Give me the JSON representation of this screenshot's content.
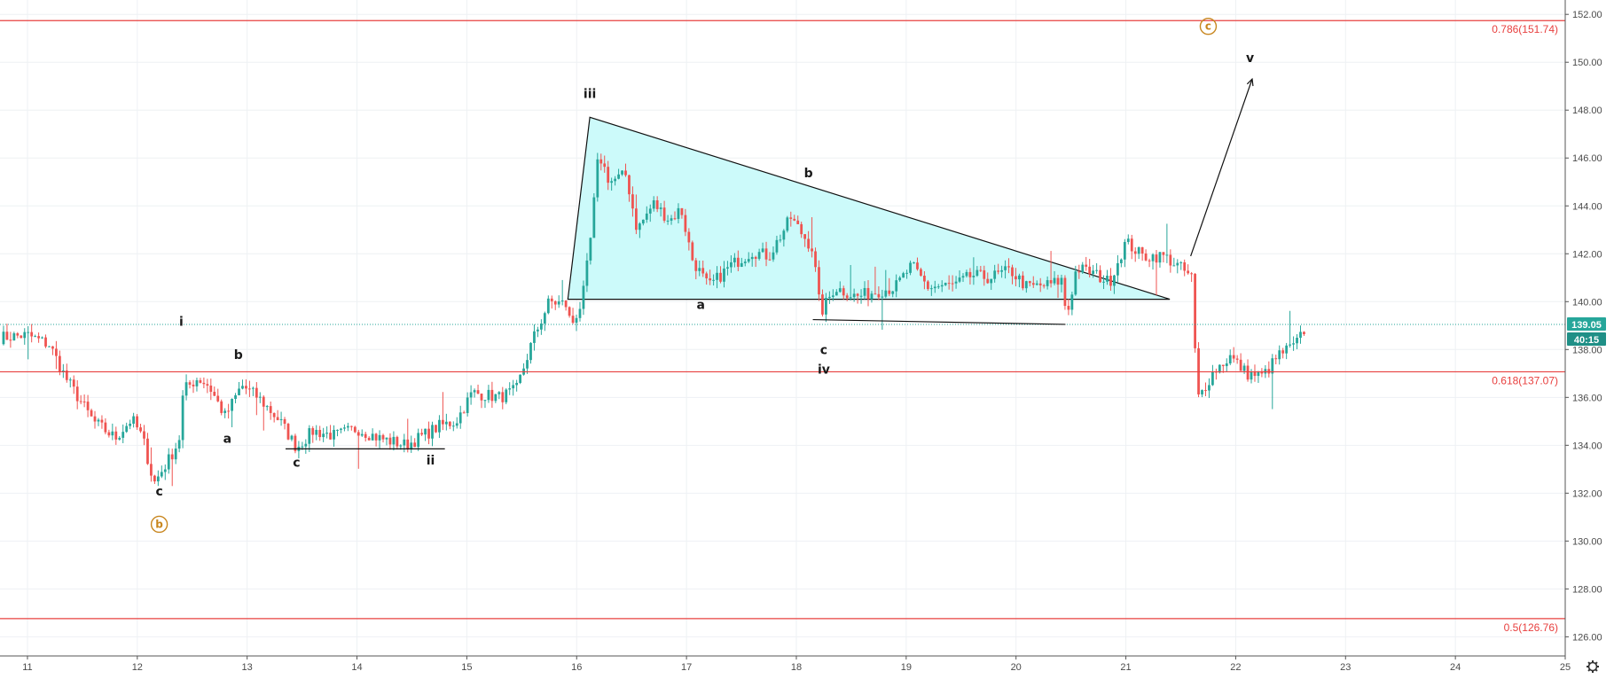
{
  "chart_data": {
    "type": "candlestick",
    "xlabel": "",
    "ylabel": "",
    "x_axis": {
      "range": [
        10.75,
        25.0
      ],
      "tick_labels": [
        "11",
        "12",
        "13",
        "14",
        "15",
        "16",
        "17",
        "18",
        "19",
        "20",
        "21",
        "22",
        "23",
        "24",
        "25"
      ]
    },
    "y_axis": {
      "range": [
        125.2,
        152.6
      ],
      "position": "right",
      "tick_labels": [
        "126.00",
        "128.00",
        "130.00",
        "132.00",
        "134.00",
        "136.00",
        "138.00",
        "140.00",
        "142.00",
        "144.00",
        "146.00",
        "148.00",
        "150.00",
        "152.00"
      ]
    },
    "grid": true,
    "colors": {
      "up": "#26a69a",
      "down": "#ef5350",
      "fib_line": "#e8403f",
      "triangle_fill": "#ccfafa",
      "badge": "#26a69a",
      "circled": "#c8861e"
    },
    "fib_levels": [
      {
        "value": 151.74,
        "label": "0.786(151.74)"
      },
      {
        "value": 137.07,
        "label": "0.618(137.07)"
      },
      {
        "value": 126.76,
        "label": "0.5(126.76)"
      }
    ],
    "last_price": {
      "value": 139.05,
      "label": "139.05",
      "countdown": "40:15"
    },
    "waypoints": [
      [
        10.75,
        138.5
      ],
      [
        11.0,
        138.6
      ],
      [
        11.2,
        138.2
      ],
      [
        11.35,
        136.8
      ],
      [
        11.6,
        135.0
      ],
      [
        11.8,
        134.3
      ],
      [
        11.95,
        135.1
      ],
      [
        12.05,
        134.3
      ],
      [
        12.15,
        132.4
      ],
      [
        12.3,
        133.5
      ],
      [
        12.38,
        134.2
      ],
      [
        12.42,
        136.3
      ],
      [
        12.55,
        136.8
      ],
      [
        12.65,
        136.5
      ],
      [
        12.8,
        135.2
      ],
      [
        12.95,
        136.5
      ],
      [
        13.1,
        136.0
      ],
      [
        13.3,
        135.0
      ],
      [
        13.45,
        133.9
      ],
      [
        13.6,
        134.6
      ],
      [
        13.8,
        134.4
      ],
      [
        14.0,
        134.7
      ],
      [
        14.2,
        134.3
      ],
      [
        14.45,
        134.0
      ],
      [
        14.6,
        134.4
      ],
      [
        14.75,
        134.8
      ],
      [
        14.9,
        135.0
      ],
      [
        15.05,
        136.2
      ],
      [
        15.3,
        136.0
      ],
      [
        15.45,
        136.3
      ],
      [
        15.6,
        138.4
      ],
      [
        15.75,
        140.0
      ],
      [
        15.9,
        139.9
      ],
      [
        15.95,
        139.0
      ],
      [
        16.05,
        140.0
      ],
      [
        16.12,
        142.3
      ],
      [
        16.2,
        146.2
      ],
      [
        16.3,
        145.0
      ],
      [
        16.45,
        145.3
      ],
      [
        16.55,
        143.0
      ],
      [
        16.7,
        144.1
      ],
      [
        16.85,
        143.4
      ],
      [
        16.95,
        143.9
      ],
      [
        17.05,
        141.8
      ],
      [
        17.2,
        140.6
      ],
      [
        17.4,
        141.5
      ],
      [
        17.6,
        142.1
      ],
      [
        17.75,
        141.9
      ],
      [
        17.95,
        143.5
      ],
      [
        18.15,
        142.2
      ],
      [
        18.22,
        139.5
      ],
      [
        18.35,
        140.6
      ],
      [
        18.55,
        140.2
      ],
      [
        18.7,
        140.4
      ],
      [
        18.9,
        140.6
      ],
      [
        19.05,
        141.5
      ],
      [
        19.2,
        140.6
      ],
      [
        19.45,
        140.7
      ],
      [
        19.6,
        141.1
      ],
      [
        19.75,
        141.0
      ],
      [
        19.95,
        141.3
      ],
      [
        20.1,
        140.6
      ],
      [
        20.3,
        140.7
      ],
      [
        20.42,
        140.9
      ],
      [
        20.46,
        139.3
      ],
      [
        20.55,
        141.4
      ],
      [
        20.7,
        141.2
      ],
      [
        20.85,
        140.8
      ],
      [
        21.0,
        142.5
      ],
      [
        21.15,
        141.9
      ],
      [
        21.35,
        141.9
      ],
      [
        21.5,
        141.4
      ],
      [
        21.6,
        141.0
      ],
      [
        21.65,
        135.9
      ],
      [
        21.8,
        137.1
      ],
      [
        21.95,
        137.7
      ],
      [
        22.1,
        137.0
      ],
      [
        22.25,
        136.9
      ],
      [
        22.4,
        137.8
      ],
      [
        22.55,
        138.2
      ],
      [
        22.65,
        139.05
      ]
    ],
    "triangle": [
      [
        15.92,
        140.1
      ],
      [
        16.12,
        147.7
      ],
      [
        21.4,
        140.1
      ]
    ],
    "lines": [
      [
        [
          13.35,
          133.85
        ],
        [
          14.8,
          133.85
        ]
      ],
      [
        [
          18.15,
          139.25
        ],
        [
          20.45,
          139.05
        ]
      ],
      [
        [
          21.59,
          141.9
        ],
        [
          22.15,
          149.3
        ]
      ]
    ],
    "circled_labels": [
      {
        "text": "b",
        "x": 12.2,
        "y": 130.7
      },
      {
        "text": "c",
        "x": 21.75,
        "y": 151.5
      }
    ],
    "wave_labels": [
      {
        "text": "i",
        "x": 12.4,
        "y": 139.0
      },
      {
        "text": "c",
        "x": 12.2,
        "y": 131.9
      },
      {
        "text": "a",
        "x": 12.82,
        "y": 134.1
      },
      {
        "text": "b",
        "x": 12.92,
        "y": 137.6
      },
      {
        "text": "c",
        "x": 13.45,
        "y": 133.1
      },
      {
        "text": "ii",
        "x": 14.67,
        "y": 133.2
      },
      {
        "text": "iii",
        "x": 16.12,
        "y": 148.5
      },
      {
        "text": "a",
        "x": 17.13,
        "y": 139.7
      },
      {
        "text": "b",
        "x": 18.11,
        "y": 145.2
      },
      {
        "text": "c",
        "x": 18.25,
        "y": 137.8
      },
      {
        "text": "iv",
        "x": 18.25,
        "y": 137.0
      },
      {
        "text": "v",
        "x": 22.13,
        "y": 150.0
      }
    ]
  },
  "icons": {
    "settings": "gear-icon"
  }
}
